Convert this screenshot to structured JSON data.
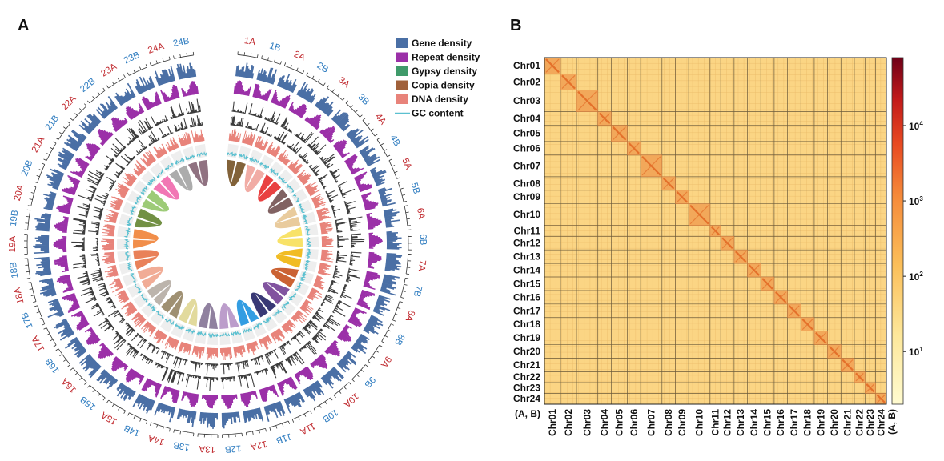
{
  "panels": {
    "a_label": "A",
    "b_label": "B"
  },
  "colors": {
    "gene": "#4a6fa5",
    "repeat": "#9b30a8",
    "gypsy": "#3f9a6a",
    "copia": "#a0603a",
    "dna": "#e8837a",
    "gc": "#5bc0d0",
    "label_a": "#c0282d",
    "label_b": "#2e7cc0",
    "heat_low": "#fdf3b8",
    "heat_bg": "#fbd584",
    "heat_high": "#6e0018"
  },
  "chart_data": [
    {
      "type": "circos",
      "chromosomes": [
        "1A",
        "1B",
        "2A",
        "2B",
        "3A",
        "3B",
        "4A",
        "4B",
        "5A",
        "5B",
        "6A",
        "6B",
        "7A",
        "7B",
        "8A",
        "8B",
        "9A",
        "9B",
        "10A",
        "10B",
        "11A",
        "11B",
        "12A",
        "12B",
        "13A",
        "13B",
        "14A",
        "14B",
        "15A",
        "15B",
        "16A",
        "16B",
        "17A",
        "17B",
        "18A",
        "18B",
        "19A",
        "19B",
        "20A",
        "20B",
        "21A",
        "21B",
        "22A",
        "22B",
        "23A",
        "23B",
        "24A",
        "24B"
      ],
      "tracks": [
        "Gene density",
        "Repeat density",
        "Gypsy density",
        "Copia density",
        "DNA density",
        "GC content"
      ],
      "legend": [
        {
          "label": "Gene density",
          "color": "#4a6fa5"
        },
        {
          "label": "Repeat density",
          "color": "#9b30a8"
        },
        {
          "label": "Gypsy density",
          "color": "#3f9a6a"
        },
        {
          "label": "Copia density",
          "color": "#a0603a"
        },
        {
          "label": "DNA density",
          "color": "#e8837a"
        },
        {
          "label": "GC content",
          "color": "#5bc0d0"
        }
      ],
      "legend_position": "top-right",
      "link_colors": [
        "#7b5a2e",
        "#f0a8a0",
        "#e83838",
        "#7a5a5a",
        "#e8c898",
        "#f8e060",
        "#f0b818",
        "#c85a28",
        "#7a4a9a",
        "#2e2e6e",
        "#2898e0",
        "#b898c8",
        "#8a7a9a",
        "#e0d898",
        "#9a8a6a",
        "#b8b0a8",
        "#f0a890",
        "#e87a50",
        "#f08840",
        "#6a8a3a",
        "#98c870",
        "#f070b0",
        "#a8a8a8",
        "#8a6a7a"
      ]
    },
    {
      "type": "heatmap",
      "x_categories": [
        "Chr01",
        "Chr02",
        "Chr03",
        "Chr04",
        "Chr05",
        "Chr06",
        "Chr07",
        "Chr08",
        "Chr09",
        "Chr10",
        "Chr11",
        "Chr12",
        "Chr13",
        "Chr14",
        "Chr15",
        "Chr16",
        "Chr17",
        "Chr18",
        "Chr19",
        "Chr20",
        "Chr21",
        "Chr22",
        "Chr23",
        "Chr24"
      ],
      "y_categories": [
        "Chr01",
        "Chr02",
        "Chr03",
        "Chr04",
        "Chr05",
        "Chr06",
        "Chr07",
        "Chr08",
        "Chr09",
        "Chr10",
        "Chr11",
        "Chr12",
        "Chr13",
        "Chr14",
        "Chr15",
        "Chr16",
        "Chr17",
        "Chr18",
        "Chr19",
        "Chr20",
        "Chr21",
        "Chr22",
        "Chr23",
        "Chr24"
      ],
      "relative_sizes": [
        1.2,
        1.2,
        1.6,
        1.0,
        1.2,
        1.0,
        1.6,
        1.0,
        1.0,
        1.6,
        0.8,
        1.0,
        1.0,
        1.0,
        1.0,
        1.0,
        1.0,
        1.0,
        1.0,
        1.0,
        1.0,
        0.8,
        0.8,
        0.8
      ],
      "diagonal_value": 3000,
      "off_diagonal_value": 10,
      "xlabel": "(A, B)",
      "ylabel": "(A, B)",
      "colorbar": {
        "scale": "log",
        "ticks": [
          {
            "value": 10,
            "label": "10",
            "exp": "1"
          },
          {
            "value": 100,
            "label": "10",
            "exp": "2"
          },
          {
            "value": 1000,
            "label": "10",
            "exp": "3"
          },
          {
            "value": 10000,
            "label": "10",
            "exp": "4"
          }
        ],
        "range": [
          2,
          80000
        ]
      }
    }
  ]
}
